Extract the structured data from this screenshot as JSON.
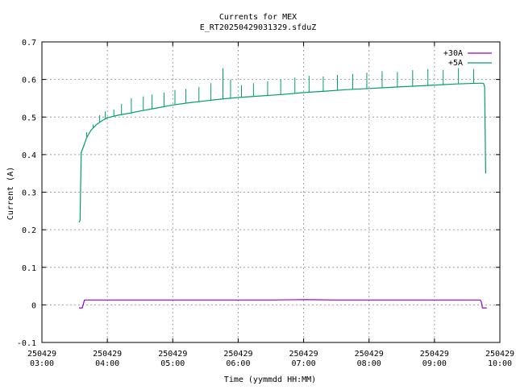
{
  "chart_data": {
    "type": "line",
    "title": "Currents for MEX",
    "subtitle": "E_RT20250429031329.sfduZ",
    "xlabel": "Time (yymmdd HH:MM)",
    "ylabel": "Current (A)",
    "ylim": [
      -0.1,
      0.7
    ],
    "yticks": [
      -0.1,
      0,
      0.1,
      0.2,
      0.3,
      0.4,
      0.5,
      0.6,
      0.7
    ],
    "ytick_labels": [
      "-0.1",
      "0",
      "0.1",
      "0.2",
      "0.3",
      "0.4",
      "0.5",
      "0.6",
      "0.7"
    ],
    "xlim": [
      "2025-04-29 03:00",
      "2025-04-29 10:00"
    ],
    "xticks": [
      {
        "time": "2025-04-29 03:00",
        "date_label": "250429",
        "time_label": "03:00"
      },
      {
        "time": "2025-04-29 04:00",
        "date_label": "250429",
        "time_label": "04:00"
      },
      {
        "time": "2025-04-29 05:00",
        "date_label": "250429",
        "time_label": "05:00"
      },
      {
        "time": "2025-04-29 06:00",
        "date_label": "250429",
        "time_label": "06:00"
      },
      {
        "time": "2025-04-29 07:00",
        "date_label": "250429",
        "time_label": "07:00"
      },
      {
        "time": "2025-04-29 08:00",
        "date_label": "250429",
        "time_label": "08:00"
      },
      {
        "time": "2025-04-29 09:00",
        "date_label": "250429",
        "time_label": "09:00"
      },
      {
        "time": "2025-04-29 10:00",
        "date_label": "250429",
        "time_label": "10:00"
      }
    ],
    "grid": true,
    "legend_position": "top-right",
    "series": [
      {
        "name": "+30A",
        "color": "#9400d3",
        "points": [
          {
            "x": "2025-04-29 03:34",
            "y": -0.008
          },
          {
            "x": "2025-04-29 03:37",
            "y": -0.008
          },
          {
            "x": "2025-04-29 03:38",
            "y": 0.002
          },
          {
            "x": "2025-04-29 03:39",
            "y": 0.013
          },
          {
            "x": "2025-04-29 04:00",
            "y": 0.013
          },
          {
            "x": "2025-04-29 04:30",
            "y": 0.013
          },
          {
            "x": "2025-04-29 05:00",
            "y": 0.013
          },
          {
            "x": "2025-04-29 05:30",
            "y": 0.013
          },
          {
            "x": "2025-04-29 06:00",
            "y": 0.013
          },
          {
            "x": "2025-04-29 06:30",
            "y": 0.013
          },
          {
            "x": "2025-04-29 07:00",
            "y": 0.014
          },
          {
            "x": "2025-04-29 07:30",
            "y": 0.013
          },
          {
            "x": "2025-04-29 08:00",
            "y": 0.013
          },
          {
            "x": "2025-04-29 08:30",
            "y": 0.013
          },
          {
            "x": "2025-04-29 09:00",
            "y": 0.013
          },
          {
            "x": "2025-04-29 09:30",
            "y": 0.013
          },
          {
            "x": "2025-04-29 09:42",
            "y": 0.013
          },
          {
            "x": "2025-04-29 09:43",
            "y": 0.008
          },
          {
            "x": "2025-04-29 09:44",
            "y": -0.008
          },
          {
            "x": "2025-04-29 09:48",
            "y": -0.008
          }
        ]
      },
      {
        "name": "+5A",
        "color": "#009e73",
        "points": [
          {
            "x": "2025-04-29 03:34",
            "y": 0.22
          },
          {
            "x": "2025-04-29 03:35",
            "y": 0.225
          },
          {
            "x": "2025-04-29 03:36",
            "y": 0.405
          },
          {
            "x": "2025-04-29 03:38",
            "y": 0.42
          },
          {
            "x": "2025-04-29 03:41",
            "y": 0.445
          },
          {
            "x": "2025-04-29 03:45",
            "y": 0.465
          },
          {
            "x": "2025-04-29 03:50",
            "y": 0.48
          },
          {
            "x": "2025-04-29 03:55",
            "y": 0.49
          },
          {
            "x": "2025-04-29 04:00",
            "y": 0.498
          },
          {
            "x": "2025-04-29 04:10",
            "y": 0.505
          },
          {
            "x": "2025-04-29 04:20",
            "y": 0.51
          },
          {
            "x": "2025-04-29 04:30",
            "y": 0.516
          },
          {
            "x": "2025-04-29 04:45",
            "y": 0.524
          },
          {
            "x": "2025-04-29 05:00",
            "y": 0.532
          },
          {
            "x": "2025-04-29 05:15",
            "y": 0.538
          },
          {
            "x": "2025-04-29 05:30",
            "y": 0.543
          },
          {
            "x": "2025-04-29 05:45",
            "y": 0.548
          },
          {
            "x": "2025-04-29 06:00",
            "y": 0.552
          },
          {
            "x": "2025-04-29 06:20",
            "y": 0.556
          },
          {
            "x": "2025-04-29 06:40",
            "y": 0.56
          },
          {
            "x": "2025-04-29 07:00",
            "y": 0.565
          },
          {
            "x": "2025-04-29 07:20",
            "y": 0.569
          },
          {
            "x": "2025-04-29 07:40",
            "y": 0.573
          },
          {
            "x": "2025-04-29 08:00",
            "y": 0.576
          },
          {
            "x": "2025-04-29 08:20",
            "y": 0.579
          },
          {
            "x": "2025-04-29 08:40",
            "y": 0.582
          },
          {
            "x": "2025-04-29 09:00",
            "y": 0.585
          },
          {
            "x": "2025-04-29 09:20",
            "y": 0.588
          },
          {
            "x": "2025-04-29 09:40",
            "y": 0.59
          },
          {
            "x": "2025-04-29 09:45",
            "y": 0.59
          },
          {
            "x": "2025-04-29 09:46",
            "y": 0.58
          },
          {
            "x": "2025-04-29 09:47",
            "y": 0.35
          }
        ],
        "spikes": [
          {
            "x": "2025-04-29 03:41",
            "y": 0.46
          },
          {
            "x": "2025-04-29 03:47",
            "y": 0.48
          },
          {
            "x": "2025-04-29 03:53",
            "y": 0.505
          },
          {
            "x": "2025-04-29 03:58",
            "y": 0.515
          },
          {
            "x": "2025-04-29 04:06",
            "y": 0.52
          },
          {
            "x": "2025-04-29 04:13",
            "y": 0.535
          },
          {
            "x": "2025-04-29 04:22",
            "y": 0.55
          },
          {
            "x": "2025-04-29 04:33",
            "y": 0.555
          },
          {
            "x": "2025-04-29 04:41",
            "y": 0.56
          },
          {
            "x": "2025-04-29 04:52",
            "y": 0.565
          },
          {
            "x": "2025-04-29 05:02",
            "y": 0.572
          },
          {
            "x": "2025-04-29 05:12",
            "y": 0.575
          },
          {
            "x": "2025-04-29 05:24",
            "y": 0.58
          },
          {
            "x": "2025-04-29 05:35",
            "y": 0.59
          },
          {
            "x": "2025-04-29 05:46",
            "y": 0.63
          },
          {
            "x": "2025-04-29 05:53",
            "y": 0.6
          },
          {
            "x": "2025-04-29 06:03",
            "y": 0.585
          },
          {
            "x": "2025-04-29 06:14",
            "y": 0.59
          },
          {
            "x": "2025-04-29 06:27",
            "y": 0.595
          },
          {
            "x": "2025-04-29 06:39",
            "y": 0.6
          },
          {
            "x": "2025-04-29 06:52",
            "y": 0.605
          },
          {
            "x": "2025-04-29 07:05",
            "y": 0.61
          },
          {
            "x": "2025-04-29 07:18",
            "y": 0.608
          },
          {
            "x": "2025-04-29 07:31",
            "y": 0.612
          },
          {
            "x": "2025-04-29 07:45",
            "y": 0.615
          },
          {
            "x": "2025-04-29 07:58",
            "y": 0.618
          },
          {
            "x": "2025-04-29 08:12",
            "y": 0.622
          },
          {
            "x": "2025-04-29 08:26",
            "y": 0.62
          },
          {
            "x": "2025-04-29 08:40",
            "y": 0.625
          },
          {
            "x": "2025-04-29 08:54",
            "y": 0.628
          },
          {
            "x": "2025-04-29 09:08",
            "y": 0.625
          },
          {
            "x": "2025-04-29 09:22",
            "y": 0.63
          },
          {
            "x": "2025-04-29 09:36",
            "y": 0.628
          }
        ]
      }
    ]
  }
}
